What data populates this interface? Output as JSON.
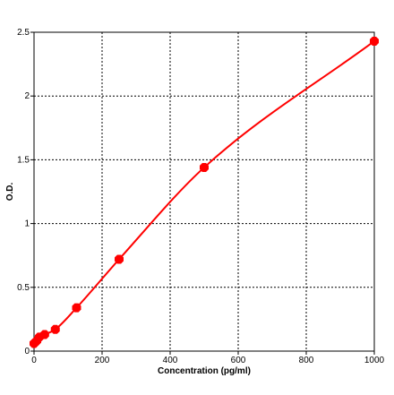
{
  "chart_data": {
    "type": "scatter",
    "title": "",
    "xlabel": "Concentration (pg/ml)",
    "ylabel": "O.D.",
    "xlim": [
      0,
      1000
    ],
    "ylim": [
      0,
      2.5
    ],
    "x_ticks": [
      0,
      200,
      400,
      600,
      800,
      1000
    ],
    "y_ticks": [
      0,
      0.5,
      1,
      1.5,
      2,
      2.5
    ],
    "x_tick_labels": [
      "0",
      "200",
      "400",
      "600",
      "800",
      "1000"
    ],
    "y_tick_labels": [
      "0",
      "0.5",
      "1",
      "1.5",
      "2",
      "2.5"
    ],
    "grid": true,
    "grid_style": "dotted",
    "legend": "none",
    "series": [
      {
        "x": [
          0,
          7.8,
          15.6,
          31.2,
          62.5,
          125,
          250,
          500,
          1000
        ],
        "y": [
          0.06,
          0.08,
          0.11,
          0.13,
          0.17,
          0.34,
          0.72,
          1.44,
          2.43
        ],
        "color": "#ff0000",
        "marker": "filled-octagon",
        "fit_curve": true
      }
    ]
  }
}
